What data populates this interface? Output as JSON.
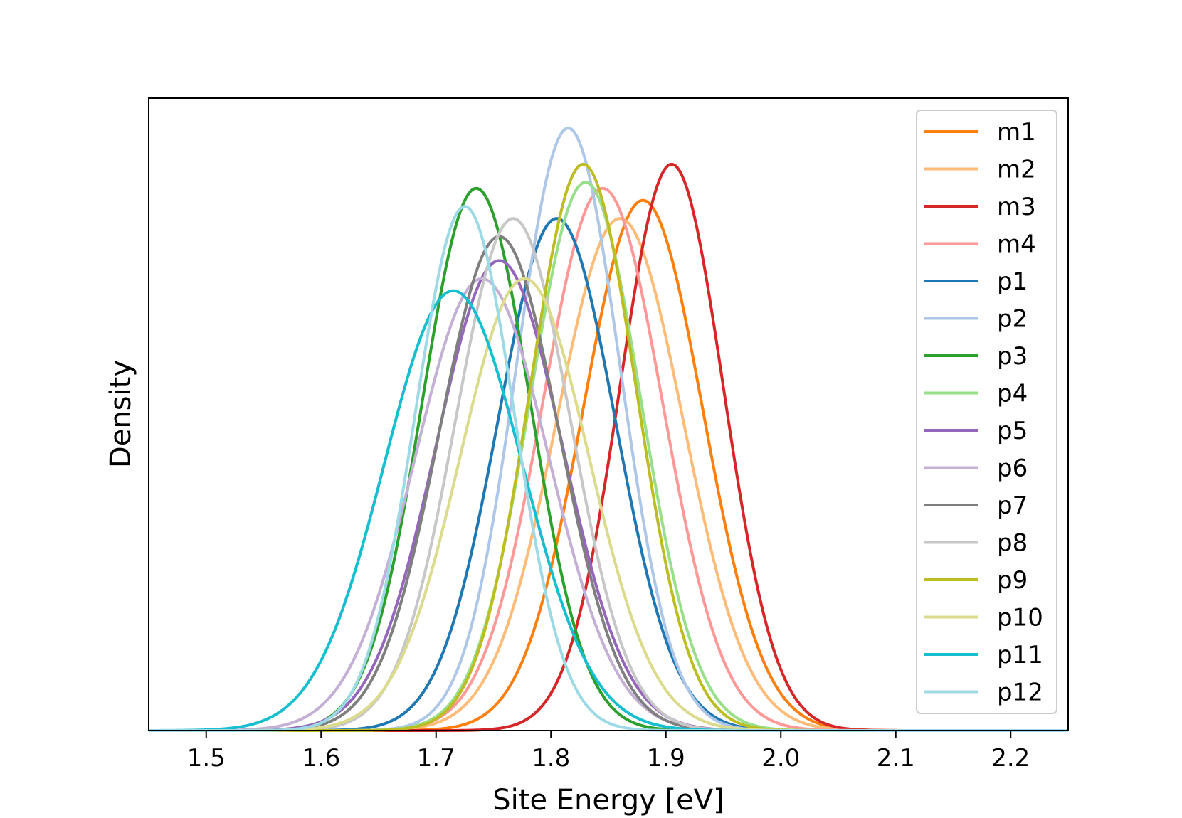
{
  "chart_data": {
    "type": "line",
    "title": "",
    "xlabel": "Site Energy [eV]",
    "ylabel": "Density",
    "xlim": [
      1.45,
      2.25
    ],
    "ylim": [
      0,
      1.0
    ],
    "x_ticks": [
      "1.5",
      "1.6",
      "1.7",
      "1.8",
      "1.9",
      "2.0",
      "2.1",
      "2.2"
    ],
    "y_ticks": [],
    "grid": false,
    "legend_position": "top-right",
    "series": [
      {
        "name": "m1",
        "color": "#ff7f0e",
        "mean": 1.88,
        "sigma": 0.052,
        "peak": 0.88
      },
      {
        "name": "m2",
        "color": "#ffbb78",
        "mean": 1.86,
        "sigma": 0.055,
        "peak": 0.85
      },
      {
        "name": "m3",
        "color": "#d62728",
        "mean": 1.905,
        "sigma": 0.045,
        "peak": 0.94
      },
      {
        "name": "m4",
        "color": "#ff9896",
        "mean": 1.845,
        "sigma": 0.052,
        "peak": 0.9
      },
      {
        "name": "p1",
        "color": "#1f77b4",
        "mean": 1.805,
        "sigma": 0.051,
        "peak": 0.85
      },
      {
        "name": "p2",
        "color": "#aec7e8",
        "mean": 1.815,
        "sigma": 0.045,
        "peak": 1.0
      },
      {
        "name": "p3",
        "color": "#2ca02c",
        "mean": 1.735,
        "sigma": 0.047,
        "peak": 0.9
      },
      {
        "name": "p4",
        "color": "#98df8a",
        "mean": 1.83,
        "sigma": 0.048,
        "peak": 0.91
      },
      {
        "name": "p5",
        "color": "#9467bd",
        "mean": 1.755,
        "sigma": 0.055,
        "peak": 0.78
      },
      {
        "name": "p6",
        "color": "#c5b0d5",
        "mean": 1.74,
        "sigma": 0.058,
        "peak": 0.75
      },
      {
        "name": "p7",
        "color": "#7f7f7f",
        "mean": 1.755,
        "sigma": 0.052,
        "peak": 0.82
      },
      {
        "name": "p8",
        "color": "#c7c7c7",
        "mean": 1.767,
        "sigma": 0.05,
        "peak": 0.85
      },
      {
        "name": "p9",
        "color": "#bcbd22",
        "mean": 1.828,
        "sigma": 0.046,
        "peak": 0.94
      },
      {
        "name": "p10",
        "color": "#dbdb8d",
        "mean": 1.777,
        "sigma": 0.056,
        "peak": 0.75
      },
      {
        "name": "p11",
        "color": "#17becf",
        "mean": 1.715,
        "sigma": 0.06,
        "peak": 0.73
      },
      {
        "name": "p12",
        "color": "#9edae5",
        "mean": 1.725,
        "sigma": 0.043,
        "peak": 0.87
      }
    ]
  }
}
